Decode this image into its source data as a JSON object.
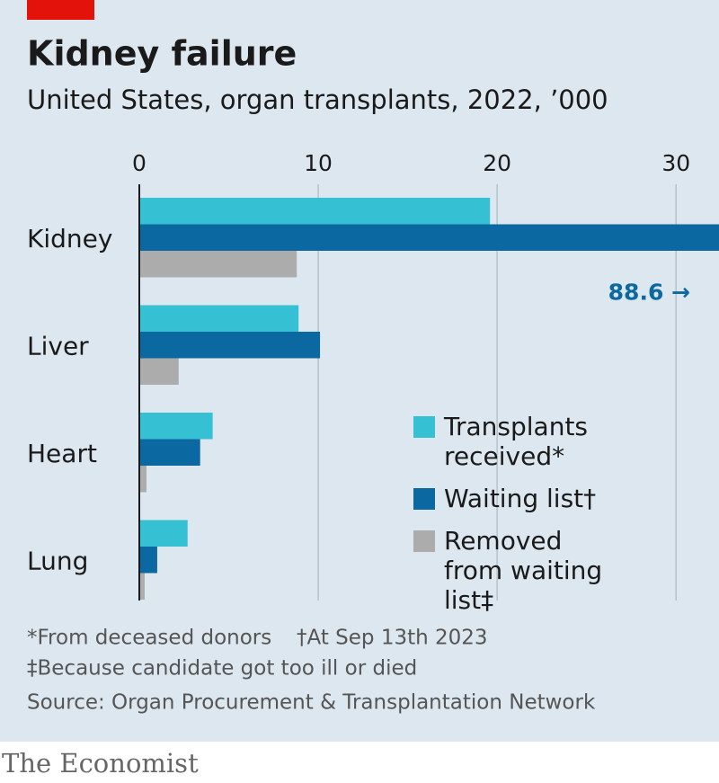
{
  "chart_data": {
    "type": "hbar",
    "title": "Kidney failure",
    "subtitle": "United States, organ transplants, 2022, ’000",
    "categories": [
      "Kidney",
      "Liver",
      "Heart",
      "Lung"
    ],
    "series": [
      {
        "name": "Transplants received*",
        "color": "#36c0d4",
        "values": [
          19.6,
          8.9,
          4.1,
          2.7
        ]
      },
      {
        "name": "Waiting list†",
        "color": "#0b68a0",
        "values": [
          88.6,
          10.1,
          3.4,
          1.0
        ],
        "value_labels": [
          "88.6 →",
          null,
          null,
          null
        ]
      },
      {
        "name": "Removed from waiting list‡",
        "color": "#acacac",
        "values": [
          8.8,
          2.2,
          0.4,
          0.3
        ]
      }
    ],
    "xlim": [
      0,
      32.4
    ],
    "xticks": [
      0,
      10,
      20,
      30
    ],
    "grid": true,
    "notes": [
      "*From deceased donors",
      "†At Sep 13th 2023",
      "‡Because candidate got too ill or died",
      "Source: Organ Procurement & Transplantation Network"
    ],
    "brand": "The Economist"
  }
}
